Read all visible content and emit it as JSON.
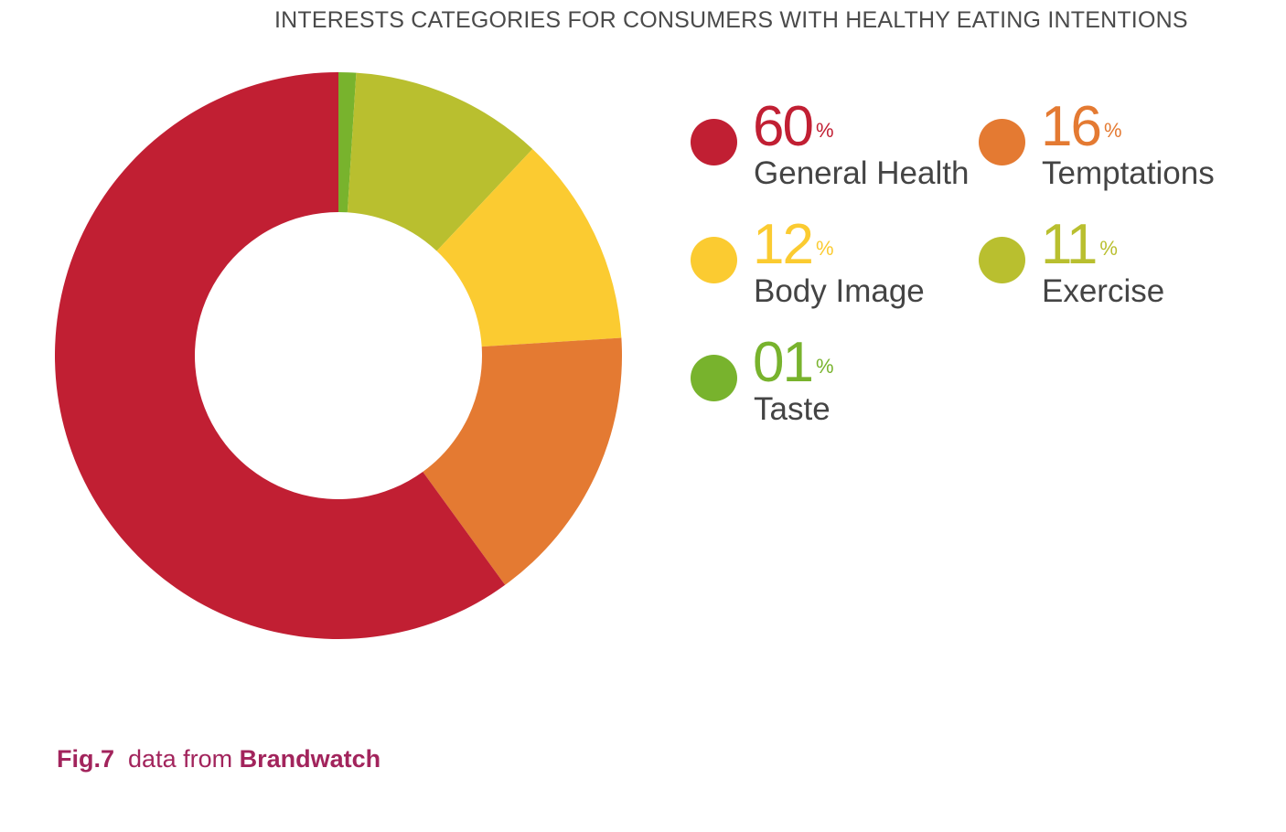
{
  "chart_data": {
    "type": "pie",
    "title": "INTERESTS CATEGORIES FOR CONSUMERS WITH HEALTHY EATING INTENTIONS",
    "categories": [
      "Taste",
      "Exercise",
      "Body Image",
      "Temptations",
      "General Health"
    ],
    "values": [
      1,
      11,
      12,
      16,
      60
    ],
    "colors": [
      "#78b32d",
      "#b9bf2f",
      "#fbcb31",
      "#e47a32",
      "#c11f33"
    ],
    "donut": true,
    "legend": [
      {
        "value_text": "60",
        "unit": "%",
        "label": "General Health",
        "color": "#c11f33"
      },
      {
        "value_text": "16",
        "unit": "%",
        "label": "Temptations",
        "color": "#e47a32"
      },
      {
        "value_text": "12",
        "unit": "%",
        "label": "Body Image",
        "color": "#fbcb31"
      },
      {
        "value_text": "11",
        "unit": "%",
        "label": "Exercise",
        "color": "#b9bf2f"
      },
      {
        "value_text": "01",
        "unit": "%",
        "label": "Taste",
        "color": "#78b32d"
      }
    ],
    "legend_placement": "right"
  },
  "caption": {
    "fig": "Fig.7",
    "text": "data from",
    "source": "Brandwatch"
  }
}
